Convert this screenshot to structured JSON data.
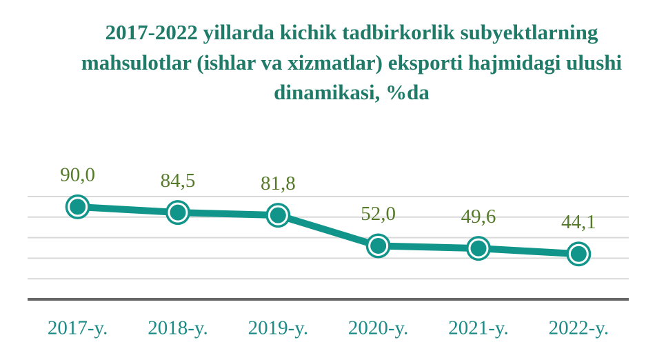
{
  "chart_data": {
    "type": "line",
    "title": [
      "2017-2022 yillarda kichik tadbirkorlik subyektlarning",
      "mahsulotlar  (ishlar va xizmatlar) eksporti hajmidagi ulushi",
      "dinamikasi, %da"
    ],
    "categories": [
      "2017-y.",
      "2018-y.",
      "2019-y.",
      "2020-y.",
      "2021-y.",
      "2022-y."
    ],
    "values": [
      90.0,
      84.5,
      81.8,
      52.0,
      49.6,
      44.1
    ],
    "value_labels": [
      "90,0",
      "84,5",
      "81,8",
      "52,0",
      "49,6",
      "44,1"
    ],
    "color": "#11958b",
    "ylim": [
      0,
      100
    ],
    "yticks": [
      20,
      40,
      60,
      80,
      100
    ],
    "grid": true
  }
}
